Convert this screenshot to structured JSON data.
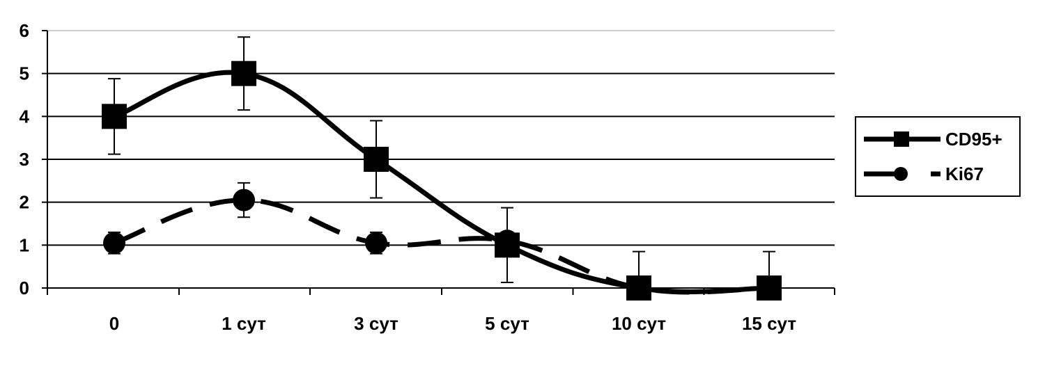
{
  "chart_data": {
    "type": "line",
    "categories": [
      "0",
      "1 сут",
      "3 сут",
      "5 сут",
      "10 сут",
      "15 сут"
    ],
    "ylim": [
      0,
      6
    ],
    "yticks": [
      0,
      1,
      2,
      3,
      4,
      5,
      6
    ],
    "grid": true,
    "legend_position": "right",
    "series": [
      {
        "name": "CD95+",
        "values": [
          4,
          5,
          3,
          1,
          0,
          0
        ],
        "error": [
          0.88,
          0.85,
          0.9,
          0.87,
          0.85,
          0.85
        ],
        "marker": "square",
        "line_style": "solid",
        "color": "#000000"
      },
      {
        "name": "Ki67",
        "values": [
          1.05,
          2.05,
          1.05,
          1.1,
          0,
          0
        ],
        "error": [
          0.25,
          0.4,
          0.25,
          0,
          0,
          0
        ],
        "marker": "circle",
        "line_style": "dashed",
        "color": "#000000"
      }
    ]
  }
}
